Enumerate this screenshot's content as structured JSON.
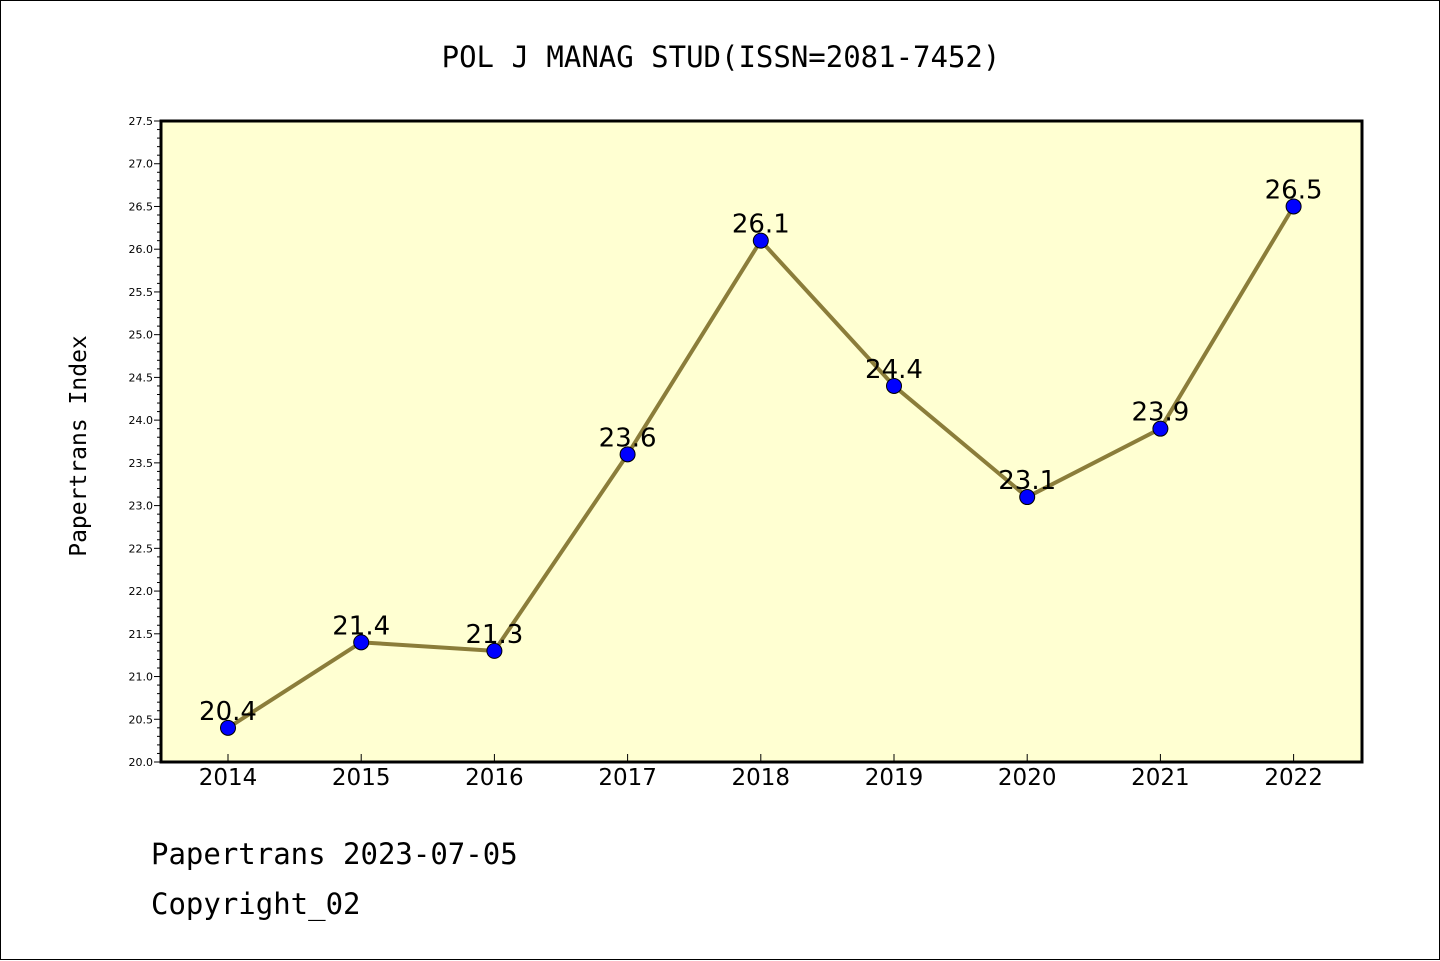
{
  "chart_data": {
    "type": "line",
    "title": "POL J MANAG STUD(ISSN=2081-7452)",
    "xlabel": "",
    "ylabel": "Papertrans Index",
    "categories": [
      "2014",
      "2015",
      "2016",
      "2017",
      "2018",
      "2019",
      "2020",
      "2021",
      "2022"
    ],
    "series": [
      {
        "values": [
          20.4,
          21.4,
          21.3,
          23.6,
          26.1,
          24.4,
          23.1,
          23.9,
          26.5
        ],
        "labels": [
          "20.4",
          "21.4",
          "21.3",
          "23.6",
          "26.1",
          "24.4",
          "23.1",
          "23.9",
          "26.5"
        ]
      }
    ],
    "ylim": [
      20.0,
      27.5
    ],
    "yticks": [
      "20.0",
      "20.5",
      "21.0",
      "21.5",
      "22.0",
      "22.5",
      "23.0",
      "23.5",
      "24.0",
      "24.5",
      "25.0",
      "25.5",
      "26.0",
      "26.5",
      "27.0",
      "27.5"
    ],
    "grid": false,
    "legend": "none",
    "colors": {
      "plot_background": "#ffffd2",
      "line": "#8b7d3a",
      "marker": "#0000ff"
    }
  },
  "footer": {
    "line1": "Papertrans 2023-07-05",
    "line2": "Copyright_02"
  }
}
